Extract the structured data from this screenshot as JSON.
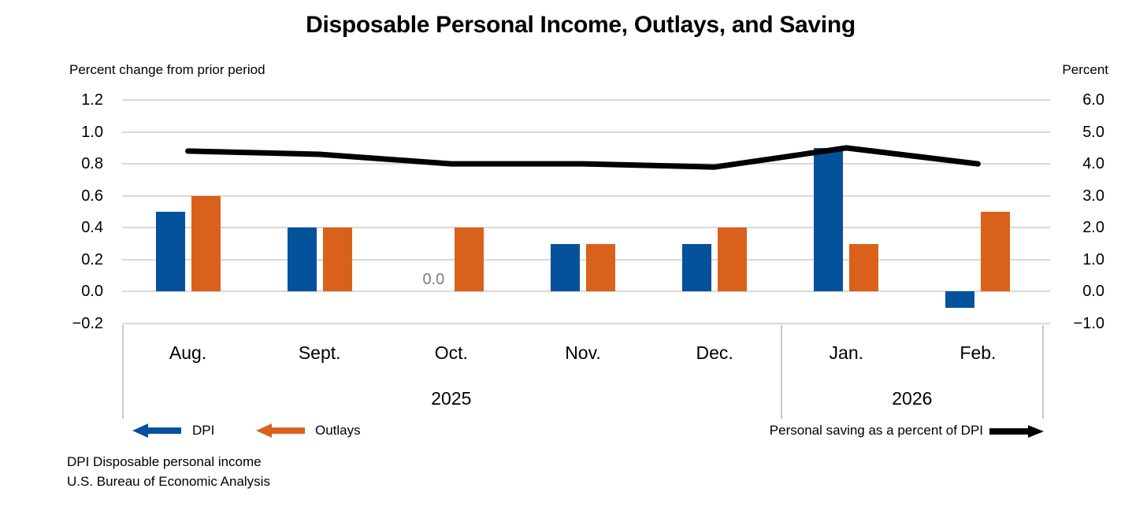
{
  "title": "Disposable Personal Income, Outlays, and Saving",
  "left_axis": {
    "caption": "Percent change from prior period",
    "ticks": [
      "1.2",
      "1.0",
      "0.8",
      "0.6",
      "0.4",
      "0.2",
      "0.0",
      "−0.2"
    ]
  },
  "right_axis": {
    "caption": "Percent",
    "ticks": [
      "6.0",
      "5.0",
      "4.0",
      "3.0",
      "2.0",
      "1.0",
      "0.0",
      "−1.0"
    ]
  },
  "chart_data": {
    "type": "bar",
    "categories": [
      "Aug.",
      "Sept.",
      "Oct.",
      "Nov.",
      "Dec.",
      "Jan.",
      "Feb."
    ],
    "year_groups": [
      {
        "label": "2025",
        "span": 5
      },
      {
        "label": "2026",
        "span": 2
      }
    ],
    "series": [
      {
        "name": "DPI",
        "type": "bar",
        "axis": "left",
        "color": "#04519C",
        "values": [
          0.5,
          0.4,
          0.0,
          0.3,
          0.3,
          0.9,
          -0.1
        ]
      },
      {
        "name": "Outlays",
        "type": "bar",
        "axis": "left",
        "color": "#D9611B",
        "values": [
          0.6,
          0.4,
          0.4,
          0.3,
          0.4,
          0.3,
          0.5
        ]
      },
      {
        "name": "Personal saving as a percent of DPI",
        "type": "line",
        "axis": "right",
        "color": "#000000",
        "values": [
          4.4,
          4.3,
          4.0,
          4.0,
          3.9,
          4.5,
          4.0
        ]
      }
    ],
    "left_axis_range": [
      -0.2,
      1.2
    ],
    "right_axis_range": [
      -1.0,
      6.0
    ],
    "grid": true,
    "legend_position": "bottom",
    "data_labels": [
      {
        "text": "0.0",
        "series": "DPI",
        "category": "Oct.",
        "color": "#7F7F7F"
      }
    ]
  },
  "legend": {
    "dpi_label": "DPI",
    "outlays_label": "Outlays",
    "saving_label": "Personal saving as a percent of DPI"
  },
  "footnotes": [
    "DPI Disposable personal income",
    "U.S. Bureau of Economic Analysis"
  ],
  "colors": {
    "dpi_bar": "#04519C",
    "outlays_bar": "#D9611B",
    "saving_line": "#000000",
    "gridline": "#D9D9D9",
    "data_label_gray": "#7F7F7F"
  }
}
